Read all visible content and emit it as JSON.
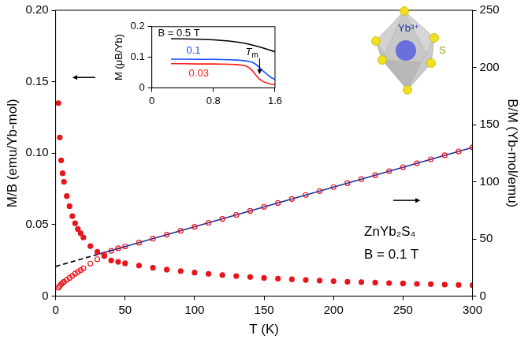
{
  "chart_data": [
    {
      "type": "scatter",
      "x_label": "T (K)",
      "y_label": "M/B (emu/Yb-mol)",
      "y2_label": "B/M (Yb-mol/emu)",
      "xlim": [
        0,
        300
      ],
      "xticks": [
        0,
        50,
        100,
        150,
        200,
        250,
        300
      ],
      "ylim": [
        0,
        0.2
      ],
      "yticks": [
        0,
        0.05,
        {
          "value": 0.1,
          "label": "0.10"
        },
        0.15,
        {
          "value": 0.2,
          "label": "0.20"
        }
      ],
      "y2lim": [
        0,
        250
      ],
      "y2ticks": [
        0,
        50,
        100,
        150,
        200,
        250
      ],
      "grid": false,
      "annotations": [
        "ZnYb₂S₄",
        "B = 0.1 T"
      ],
      "series": [
        {
          "type": "scatter",
          "marker": "circle",
          "color": "#e8141c",
          "axis": "y",
          "x": [
            2,
            3,
            4,
            5,
            6,
            8,
            10,
            12,
            14,
            16,
            18,
            20,
            25,
            30,
            35,
            40,
            45,
            50,
            60,
            70,
            80,
            90,
            100,
            110,
            120,
            130,
            140,
            150,
            160,
            170,
            180,
            190,
            200,
            210,
            220,
            230,
            240,
            250,
            260,
            270,
            280,
            290,
            300
          ],
          "values": [
            0.135,
            0.111,
            0.095,
            0.086,
            0.08,
            0.07,
            0.063,
            0.056,
            0.051,
            0.047,
            0.044,
            0.041,
            0.035,
            0.031,
            0.028,
            0.025,
            0.024,
            0.023,
            0.0214,
            0.0199,
            0.0186,
            0.0175,
            0.0165,
            0.0156,
            0.0148,
            0.0141,
            0.0134,
            0.0128,
            0.0123,
            0.0118,
            0.0113,
            0.0109,
            0.0105,
            0.0101,
            0.0098,
            0.0095,
            0.0091,
            0.0089,
            0.0086,
            0.0084,
            0.0081,
            0.0079,
            0.0077
          ]
        },
        {
          "type": "scatter",
          "marker": "open_circle",
          "color": "#e8141c",
          "axis": "y2",
          "x": [
            2,
            3,
            4,
            5,
            6,
            8,
            10,
            12,
            14,
            16,
            18,
            20,
            25,
            30,
            35,
            40,
            45,
            50,
            60,
            70,
            80,
            90,
            100,
            110,
            120,
            130,
            140,
            150,
            160,
            170,
            180,
            190,
            200,
            210,
            220,
            230,
            240,
            250,
            260,
            270,
            280,
            290,
            300
          ],
          "values": [
            7.4,
            9.0,
            10.5,
            11.6,
            12.5,
            14.3,
            16.0,
            17.8,
            19.6,
            21.2,
            22.8,
            24.3,
            28.5,
            32.3,
            36.0,
            39.6,
            41.8,
            43.5,
            46.8,
            50.3,
            53.8,
            57.2,
            60.7,
            64.2,
            67.6,
            71.1,
            74.6,
            78.1,
            81.5,
            85.0,
            88.5,
            91.9,
            95.4,
            98.9,
            102.3,
            105.8,
            109.3,
            112.8,
            116.2,
            119.7,
            123.2,
            126.6,
            130.1
          ]
        },
        {
          "type": "line",
          "line_style": "solid",
          "color": "#1c2f9c",
          "axis": "y2",
          "x": [
            30,
            300
          ],
          "values": [
            36.4,
            130.1
          ]
        },
        {
          "type": "line",
          "line_style": "dashed",
          "color": "#000000",
          "axis": "y2",
          "x": [
            0,
            50
          ],
          "values": [
            26,
            43.4
          ]
        }
      ]
    },
    {
      "type": "line",
      "y_label": "M (μB/Yb)",
      "xlim": [
        0,
        1.6
      ],
      "xticks": [
        0,
        0.8,
        1.6
      ],
      "ylim": [
        0,
        0.2
      ],
      "yticks": [
        0,
        0.1,
        0.2
      ],
      "grid": false,
      "annotations": [
        "Tm"
      ],
      "series": [
        {
          "name": "B = 0.5 T",
          "color": "#000000",
          "line_style": "solid",
          "x": [
            0.25,
            0.4,
            0.6,
            0.8,
            0.9,
            1.0,
            1.1,
            1.2,
            1.3,
            1.4,
            1.5,
            1.6
          ],
          "values": [
            0.16,
            0.16,
            0.159,
            0.157,
            0.155,
            0.153,
            0.15,
            0.146,
            0.14,
            0.134,
            0.126,
            0.118
          ]
        },
        {
          "name": "0.1",
          "color": "#1f4fff",
          "line_style": "solid",
          "x": [
            0.25,
            0.4,
            0.6,
            0.8,
            1.0,
            1.1,
            1.2,
            1.3,
            1.35,
            1.4,
            1.45,
            1.5,
            1.55,
            1.6
          ],
          "values": [
            0.094,
            0.094,
            0.093,
            0.093,
            0.092,
            0.091,
            0.089,
            0.084,
            0.077,
            0.066,
            0.054,
            0.043,
            0.034,
            0.027
          ]
        },
        {
          "name": "0.03",
          "color": "#ff1a1a",
          "line_style": "solid",
          "x": [
            0.25,
            0.4,
            0.6,
            0.8,
            1.0,
            1.1,
            1.2,
            1.25,
            1.3,
            1.35,
            1.4,
            1.45,
            1.5,
            1.55,
            1.6
          ],
          "values": [
            0.079,
            0.079,
            0.078,
            0.078,
            0.077,
            0.076,
            0.073,
            0.068,
            0.058,
            0.042,
            0.028,
            0.02,
            0.015,
            0.012,
            0.01
          ]
        }
      ]
    }
  ],
  "structure_labels": [
    "Yb³⁺",
    "S"
  ]
}
